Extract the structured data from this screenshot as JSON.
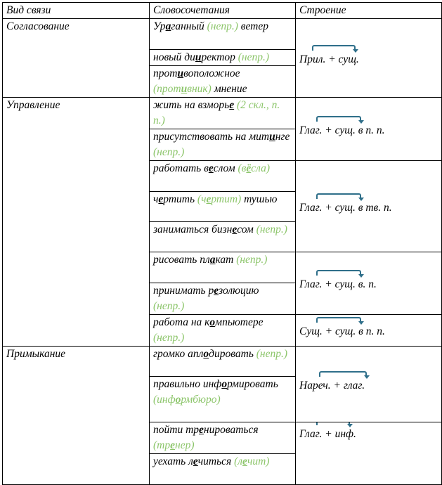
{
  "headers": [
    "Вид связи",
    "Словосочетания",
    "Строение"
  ],
  "types": [
    "Согласование",
    "Управление",
    "Примыкание"
  ],
  "structures": [
    "Прил. + сущ.",
    "Глаг. + сущ. в п. п.",
    "Глаг. + сущ. в тв. п.",
    "Глаг. + сущ. в. п.",
    "Сущ. + сущ. в п. п.",
    "Нареч. + глаг.",
    "Глаг. + инф."
  ],
  "phrases": [
    [
      [
        "Ур",
        ""
      ],
      [
        "а",
        "u"
      ],
      [
        "ганный ",
        ""
      ],
      [
        "(непр.)",
        "g"
      ],
      [
        " ветер",
        ""
      ]
    ],
    [
      [
        "новый ди",
        ""
      ],
      [
        "и",
        "u"
      ],
      [
        "ректор ",
        ""
      ],
      [
        "(непр.)",
        "g"
      ]
    ],
    [
      [
        "прот",
        ""
      ],
      [
        "и",
        "u"
      ],
      [
        "воположное ",
        ""
      ],
      [
        "(прот",
        "g"
      ],
      [
        "и",
        "gu"
      ],
      [
        "вник)",
        "g"
      ],
      [
        " мнение",
        ""
      ]
    ],
    [
      [
        "жить на взморь",
        ""
      ],
      [
        "е",
        "u"
      ],
      [
        " (2 скл., п. п.)",
        "g"
      ]
    ],
    [
      [
        "присутствовать на мит",
        ""
      ],
      [
        "и",
        "u"
      ],
      [
        "нге ",
        ""
      ],
      [
        "(непр.)",
        "g"
      ]
    ],
    [
      [
        "работать в",
        ""
      ],
      [
        "е",
        "u"
      ],
      [
        "слом ",
        ""
      ],
      [
        "(в",
        "g"
      ],
      [
        "ё",
        "gu"
      ],
      [
        "сла)",
        "g"
      ]
    ],
    [
      [
        "ч",
        ""
      ],
      [
        "е",
        "u"
      ],
      [
        "ртить ",
        ""
      ],
      [
        "(ч",
        "g"
      ],
      [
        "е",
        "gu"
      ],
      [
        "ртит)",
        "g"
      ],
      [
        " тушью",
        ""
      ]
    ],
    [
      [
        "заниматься бизн",
        ""
      ],
      [
        "е",
        "u"
      ],
      [
        "сом ",
        ""
      ],
      [
        "(непр.)",
        "g"
      ]
    ],
    [
      [
        "рисовать пл",
        ""
      ],
      [
        "а",
        "u"
      ],
      [
        "кат ",
        ""
      ],
      [
        "(непр.)",
        "g"
      ]
    ],
    [
      [
        "принимать р",
        ""
      ],
      [
        "е",
        "u"
      ],
      [
        "золюцию ",
        ""
      ],
      [
        "(непр.)",
        "g"
      ]
    ],
    [
      [
        "работа на к",
        ""
      ],
      [
        "о",
        "u"
      ],
      [
        "мпьютере ",
        ""
      ],
      [
        "(непр.)",
        "g"
      ]
    ],
    [
      [
        "громко апл",
        ""
      ],
      [
        "о",
        "u"
      ],
      [
        "дировать ",
        ""
      ],
      [
        "(непр.)",
        "g"
      ]
    ],
    [
      [
        "правильно инф",
        ""
      ],
      [
        "о",
        "u"
      ],
      [
        "рмировать ",
        ""
      ],
      [
        "(инф",
        "g"
      ],
      [
        "о",
        "gu"
      ],
      [
        "рмбюро)",
        "g"
      ]
    ],
    [
      [
        "пойти тр",
        ""
      ],
      [
        "е",
        "u"
      ],
      [
        "нироваться ",
        ""
      ],
      [
        "(тр",
        "g"
      ],
      [
        "е",
        "gu"
      ],
      [
        "нер)",
        "g"
      ]
    ],
    [
      [
        "уехать л",
        ""
      ],
      [
        "е",
        "u"
      ],
      [
        "читься ",
        ""
      ],
      [
        "(л",
        "g"
      ],
      [
        "е",
        "gu"
      ],
      [
        "чит)",
        "g"
      ]
    ]
  ],
  "colors": {
    "green": "#8cc56a",
    "arrow": "#2f6f8a"
  }
}
